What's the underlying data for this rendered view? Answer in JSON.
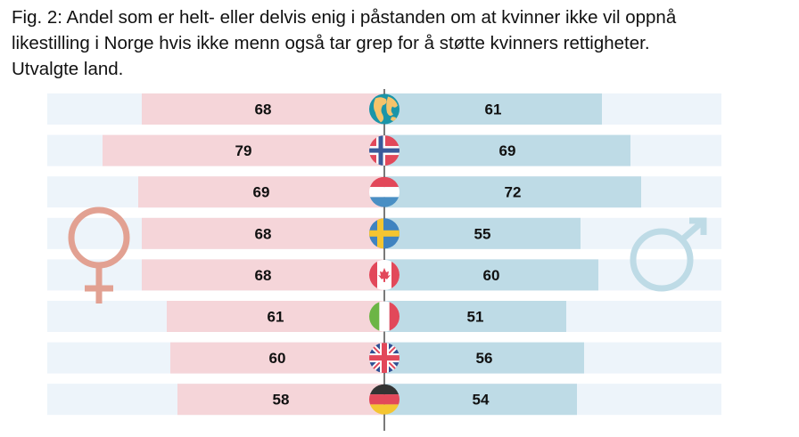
{
  "title": {
    "line1": "Fig. 2: Andel som er helt- eller delvis enig i påstanden om at kvinner ikke vil oppnå",
    "line2": "likestilling i Norge hvis ikke menn også tar grep for å støtte kvinners rettigheter.",
    "line3": "Utvalgte land."
  },
  "chart_data": {
    "type": "bar",
    "orientation": "diverging-horizontal",
    "title": "Andel som er helt- eller delvis enig i påstanden om at kvinner ikke vil oppnå likestilling i Norge hvis ikke menn også tar grep for å støtte kvinners rettigheter. Utvalgte land.",
    "categories": [
      "Global",
      "Norway",
      "Netherlands",
      "Sweden",
      "Canada",
      "Italy",
      "United Kingdom",
      "Germany"
    ],
    "flag_icons": [
      "globe-icon",
      "norway-flag-icon",
      "netherlands-flag-icon",
      "sweden-flag-icon",
      "canada-flag-icon",
      "italy-flag-icon",
      "uk-flag-icon",
      "germany-flag-icon"
    ],
    "series": [
      {
        "name": "Kvinner",
        "symbol": "female-symbol-icon",
        "side": "left",
        "color": "#f5d5d9",
        "values": [
          68,
          79,
          69,
          68,
          68,
          61,
          60,
          58
        ]
      },
      {
        "name": "Menn",
        "symbol": "male-symbol-icon",
        "side": "right",
        "color": "#bedbe6",
        "values": [
          61,
          69,
          72,
          55,
          60,
          51,
          56,
          54
        ]
      }
    ],
    "xlim": [
      0,
      100
    ],
    "unit": "%",
    "track_color": "#edf4fa",
    "female_symbol_color": "#e2a192",
    "male_symbol_color": "#bedbe6"
  }
}
